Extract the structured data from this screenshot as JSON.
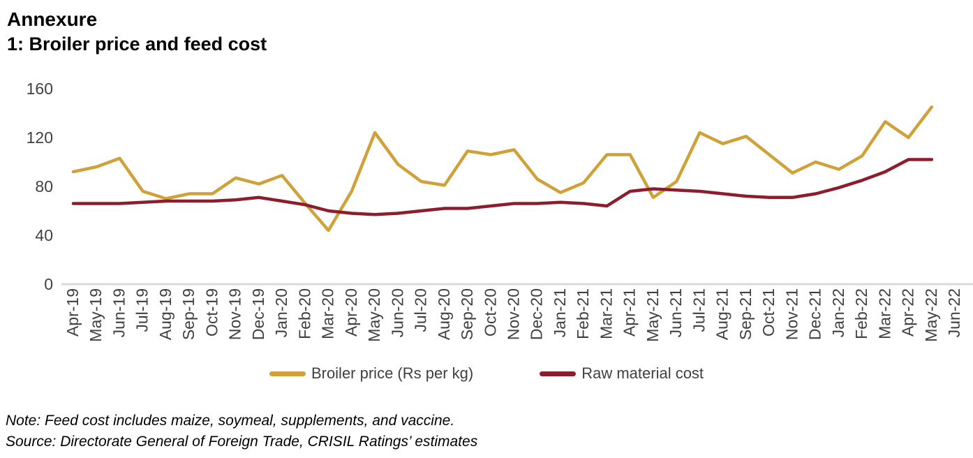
{
  "page": {
    "title": "Annexure",
    "subtitle": "1: Broiler price and feed cost",
    "note": "Note: Feed cost includes maize, soymeal, supplements, and vaccine.",
    "source": "Source: Directorate General of Foreign Trade, CRISIL Ratings’ estimates"
  },
  "chart_data": {
    "type": "line",
    "title": "1: Broiler price and feed cost",
    "xlabel": "",
    "ylabel": "",
    "ylim": [
      0,
      160
    ],
    "yticks": [
      0,
      40,
      80,
      120,
      160
    ],
    "grid": false,
    "legend_position": "bottom",
    "axis_color": "#D9D9D9",
    "tick_label_color": "#404040",
    "categories": [
      "Apr-19",
      "May-19",
      "Jun-19",
      "Jul-19",
      "Aug-19",
      "Sep-19",
      "Oct-19",
      "Nov-19",
      "Dec-19",
      "Jan-20",
      "Feb-20",
      "Mar-20",
      "Apr-20",
      "May-20",
      "Jun-20",
      "Jul-20",
      "Aug-20",
      "Sep-20",
      "Oct-20",
      "Nov-20",
      "Dec-20",
      "Jan-21",
      "Feb-21",
      "Mar-21",
      "Apr-21",
      "May-21",
      "Jun-21",
      "Jul-21",
      "Aug-21",
      "Sep-21",
      "Oct-21",
      "Nov-21",
      "Dec-21",
      "Jan-22",
      "Feb-22",
      "Mar-22",
      "Apr-22",
      "May-22",
      "Jun-22"
    ],
    "series": [
      {
        "name": "Broiler price (Rs per kg)",
        "color": "#D0A139",
        "values": [
          92,
          96,
          103,
          76,
          70,
          74,
          74,
          87,
          82,
          89,
          66,
          44,
          76,
          124,
          98,
          84,
          81,
          109,
          106,
          110,
          86,
          75,
          83,
          106,
          106,
          71,
          84,
          124,
          115,
          121,
          106,
          91,
          100,
          94,
          105,
          133,
          120,
          145,
          null
        ]
      },
      {
        "name": "Raw material cost",
        "color": "#8B1D2C",
        "values": [
          66,
          66,
          66,
          67,
          68,
          68,
          68,
          69,
          71,
          68,
          65,
          60,
          58,
          57,
          58,
          60,
          62,
          62,
          64,
          66,
          66,
          67,
          66,
          64,
          76,
          78,
          77,
          76,
          74,
          72,
          71,
          71,
          74,
          79,
          85,
          92,
          102,
          102,
          null
        ]
      }
    ]
  }
}
